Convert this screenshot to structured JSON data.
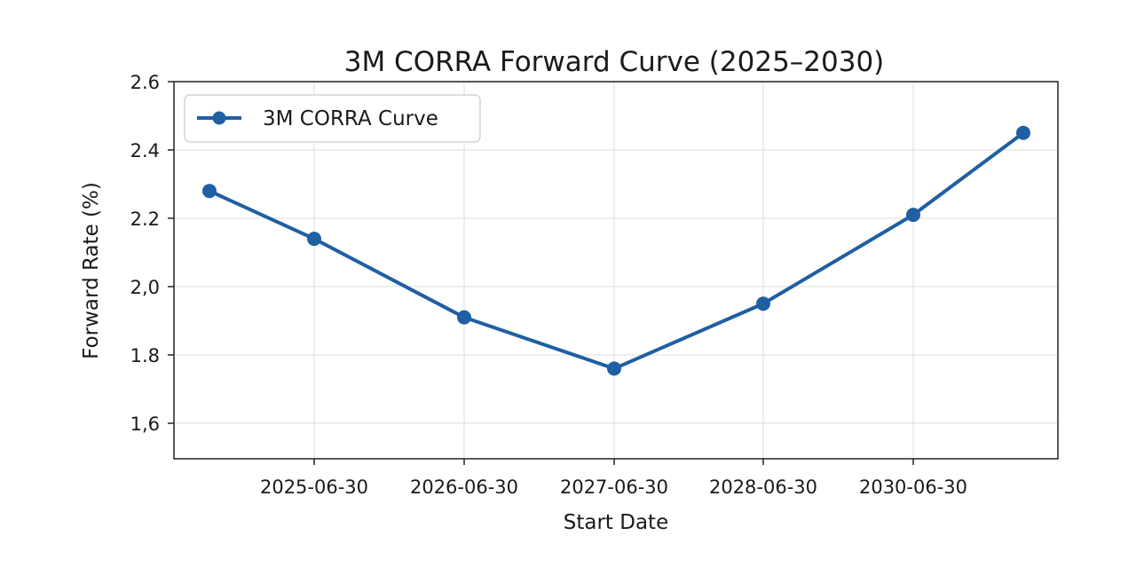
{
  "chart_data": {
    "type": "line",
    "title": "3M CORRA Forward Curve (2025–2030)",
    "xlabel": "Start Date",
    "ylabel": "Forward Rate (%)",
    "x_tick_labels": [
      "2025-06-30",
      "2026-06-30",
      "2027-06-30",
      "2028-06-30",
      "2030-06-30"
    ],
    "y_tick_labels": [
      "1,6",
      "1.8",
      "2,0",
      "2.2",
      "2.4",
      "2.6"
    ],
    "y_ticks": [
      1.6,
      1.8,
      2.0,
      2.2,
      2.4,
      2.6
    ],
    "ylim": [
      1.5,
      2.6
    ],
    "grid": true,
    "legend_position": "top-left",
    "series": [
      {
        "name": "3M CORRA Curve",
        "color": "#1f5fa3",
        "marker": "circle",
        "points": [
          {
            "x": "",
            "y": 2.28
          },
          {
            "x": "2025-06-30",
            "y": 2.14
          },
          {
            "x": "2026-06-30",
            "y": 1.91
          },
          {
            "x": "2027-06-30",
            "y": 1.76
          },
          {
            "x": "2028-06-30",
            "y": 1.95
          },
          {
            "x": "2030-06-30",
            "y": 2.21
          },
          {
            "x": "",
            "y": 2.45
          }
        ]
      }
    ]
  }
}
